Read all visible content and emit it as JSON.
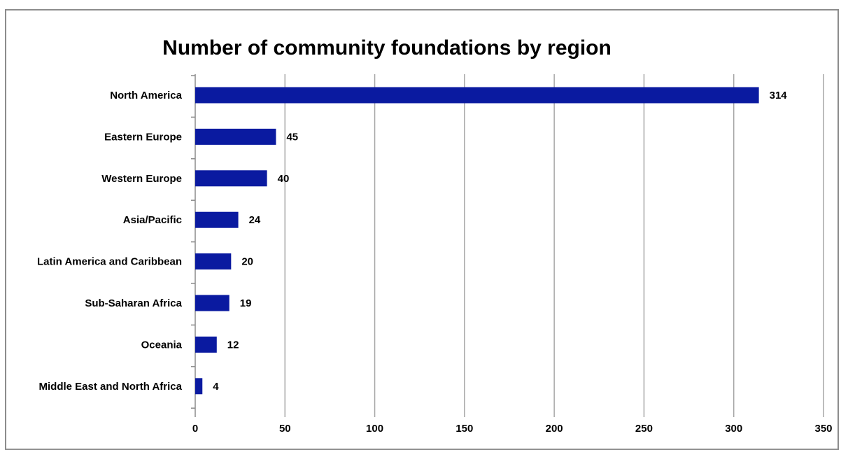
{
  "chart_data": {
    "type": "bar",
    "orientation": "horizontal",
    "title": "Number of community foundations by region",
    "xlabel": "",
    "ylabel": "",
    "categories": [
      "North America",
      "Eastern Europe",
      "Western Europe",
      "Asia/Pacific",
      "Latin America and Caribbean",
      "Sub-Saharan Africa",
      "Oceania",
      "Middle East and North Africa"
    ],
    "values": [
      314,
      45,
      40,
      24,
      20,
      19,
      12,
      4
    ],
    "xlim": [
      0,
      350
    ],
    "xticks": [
      "0",
      "50",
      "100",
      "150",
      "200",
      "250",
      "300",
      "350"
    ],
    "grid": true,
    "bar_color": "#0a1aa0",
    "data_labels": true
  }
}
